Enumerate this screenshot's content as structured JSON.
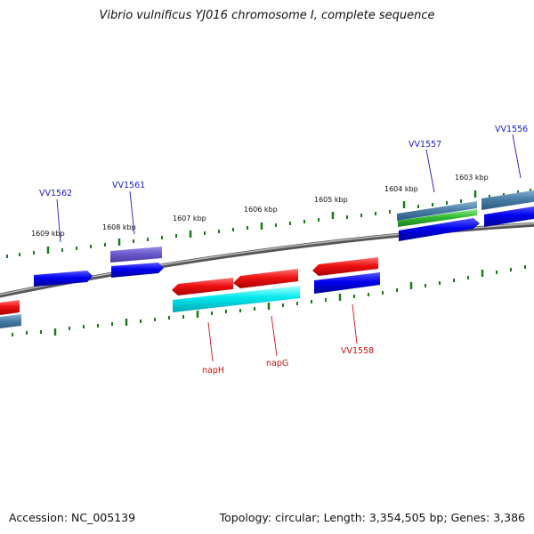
{
  "title": "Vibrio vulnificus YJ016 chromosome I, complete sequence",
  "footer": {
    "accession": "Accession: NC_005139",
    "stats": "Topology: circular; Length: 3,354,505 bp; Genes: 3,386"
  },
  "colors": {
    "forward_gene": "#0000ee",
    "reverse_gene": "#ee1111",
    "cyan_gene": "#00e8ee",
    "steelblue_gene": "#4a7fa8",
    "purple_gene": "#6a5acd",
    "green_gene": "#33bb33",
    "tick": "#1a7a1a",
    "backbone": "#888888",
    "label_forward": "#1a1acc",
    "label_reverse": "#cc1111"
  },
  "kbp_labels": [
    "1609 kbp",
    "1608 kbp",
    "1607 kbp",
    "1606 kbp",
    "1605 kbp",
    "1604 kbp",
    "1603 kbp"
  ],
  "genes_top": [
    {
      "label": "VV1562"
    },
    {
      "label": "VV1561"
    },
    {
      "label": "VV1557"
    },
    {
      "label": "VV1556"
    }
  ],
  "genes_bottom": [
    {
      "label": "napH"
    },
    {
      "label": "napG"
    },
    {
      "label": "VV1558"
    }
  ]
}
